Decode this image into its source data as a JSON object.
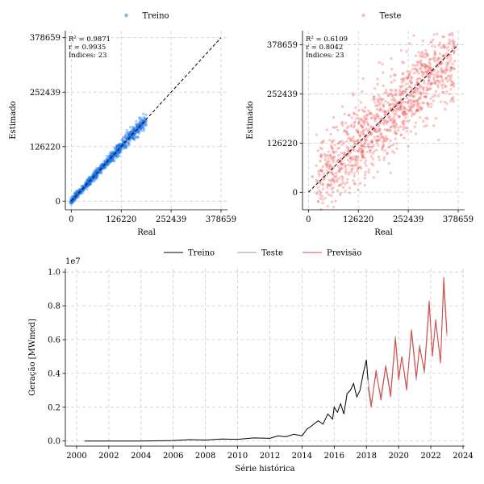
{
  "chart_data": [
    {
      "type": "scatter",
      "legend": {
        "label": "Treino",
        "color": "#1a73e8",
        "placement": "top-center"
      },
      "xlabel": "Real",
      "ylabel": "Estimado",
      "ticks": [
        0,
        126220,
        252439,
        378659
      ],
      "xlim": [
        -15000,
        395000
      ],
      "ylim": [
        -20000,
        395000
      ],
      "identity_line": true,
      "grid": true,
      "annotations": [
        "R² = 0.9871",
        "r = 0.9935",
        "Índices: 23"
      ],
      "point_color": "#1a73e8",
      "points_hint": "dense band along identity from 0 to ~190000 with small spread",
      "sample_points": [
        [
          1000,
          500
        ],
        [
          5000,
          8000
        ],
        [
          12000,
          10000
        ],
        [
          20000,
          24000
        ],
        [
          30000,
          26000
        ],
        [
          40000,
          44000
        ],
        [
          50000,
          47000
        ],
        [
          60000,
          66000
        ],
        [
          70000,
          68000
        ],
        [
          80000,
          82000
        ],
        [
          90000,
          86000
        ],
        [
          100000,
          104000
        ],
        [
          110000,
          108000
        ],
        [
          120000,
          125000
        ],
        [
          130000,
          128000
        ],
        [
          140000,
          144000
        ],
        [
          150000,
          148000
        ],
        [
          160000,
          163000
        ],
        [
          170000,
          168000
        ],
        [
          180000,
          176000
        ],
        [
          185000,
          182000
        ]
      ]
    },
    {
      "type": "scatter",
      "legend": {
        "label": "Teste",
        "color": "#f08080",
        "placement": "top-center"
      },
      "xlabel": "Real",
      "ylabel": "Estimado",
      "ticks": [
        0,
        126220,
        252439,
        378659
      ],
      "xlim": [
        -15000,
        395000
      ],
      "ylim": [
        -45000,
        415000
      ],
      "identity_line": true,
      "grid": true,
      "annotations": [
        "R² = 0.6109",
        "r = 0.8042",
        "Índices: 23"
      ],
      "point_color": "#f06060",
      "points_hint": "wide cloud around identity from 0 to ~380000",
      "sample_points": [
        [
          10000,
          40000
        ],
        [
          30000,
          80000
        ],
        [
          50000,
          20000
        ],
        [
          60000,
          130000
        ],
        [
          80000,
          60000
        ],
        [
          100000,
          150000
        ],
        [
          120000,
          90000
        ],
        [
          140000,
          180000
        ],
        [
          160000,
          130000
        ],
        [
          180000,
          210000
        ],
        [
          200000,
          160000
        ],
        [
          220000,
          250000
        ],
        [
          240000,
          200000
        ],
        [
          260000,
          280000
        ],
        [
          280000,
          240000
        ],
        [
          300000,
          300000
        ],
        [
          320000,
          280000
        ],
        [
          340000,
          340000
        ],
        [
          360000,
          320000
        ]
      ]
    },
    {
      "type": "line",
      "xlabel": "Série histórica",
      "ylabel": "Geração [MWmed]",
      "y_scale_label": "1e7",
      "xlim": [
        1999.3,
        2024.1
      ],
      "ylim": [
        -0.03,
        1.02
      ],
      "x_ticks": [
        2000,
        2002,
        2004,
        2006,
        2008,
        2010,
        2012,
        2014,
        2016,
        2018,
        2020,
        2022,
        2024
      ],
      "y_ticks": [
        "0.0",
        "0.2",
        "0.4",
        "0.6",
        "0.8",
        "1.0"
      ],
      "y_tick_values": [
        0.0,
        0.2,
        0.4,
        0.6,
        0.8,
        1.0
      ],
      "grid": true,
      "legend": {
        "placement": "top-center",
        "entries": [
          {
            "label": "Treino",
            "color": "#000000"
          },
          {
            "label": "Teste",
            "color": "#999999"
          },
          {
            "label": "Previsão",
            "color": "#e04848"
          }
        ]
      },
      "series": [
        {
          "name": "Treino",
          "color": "#000000",
          "x": [
            2000.5,
            2004,
            2006,
            2007,
            2008,
            2009,
            2010,
            2011,
            2012,
            2012.5,
            2013,
            2013.5,
            2014,
            2014.3,
            2014.6,
            2015,
            2015.3,
            2015.6,
            2015.9,
            2016,
            2016.2,
            2016.4,
            2016.6,
            2016.8,
            2017,
            2017.2,
            2017.4,
            2017.6,
            2017.8,
            2018,
            2018.1
          ],
          "y": [
            0.0,
            0.0,
            0.003,
            0.008,
            0.006,
            0.012,
            0.01,
            0.018,
            0.016,
            0.03,
            0.025,
            0.04,
            0.03,
            0.07,
            0.09,
            0.12,
            0.1,
            0.16,
            0.13,
            0.2,
            0.17,
            0.22,
            0.16,
            0.28,
            0.3,
            0.34,
            0.26,
            0.3,
            0.4,
            0.48,
            0.36
          ]
        },
        {
          "name": "Teste",
          "color": "#999999",
          "x": [
            2018.1,
            2018.3,
            2018.6,
            2018.9,
            2019.2,
            2019.5,
            2019.8,
            2020.0,
            2020.2,
            2020.5,
            2020.8,
            2021.1,
            2021.3,
            2021.6,
            2021.9,
            2022.1,
            2022.3,
            2022.6,
            2022.8,
            2023.0
          ],
          "y": [
            0.36,
            0.22,
            0.4,
            0.26,
            0.45,
            0.28,
            0.62,
            0.38,
            0.5,
            0.32,
            0.64,
            0.36,
            0.57,
            0.4,
            0.8,
            0.52,
            0.7,
            0.48,
            0.92,
            0.62
          ]
        },
        {
          "name": "Previsão",
          "color": "#e04848",
          "x": [
            2018.1,
            2018.3,
            2018.6,
            2018.9,
            2019.2,
            2019.5,
            2019.8,
            2020.0,
            2020.2,
            2020.5,
            2020.8,
            2021.1,
            2021.3,
            2021.6,
            2021.9,
            2022.1,
            2022.3,
            2022.6,
            2022.8,
            2023.0
          ],
          "y": [
            0.32,
            0.2,
            0.42,
            0.24,
            0.44,
            0.26,
            0.6,
            0.36,
            0.5,
            0.3,
            0.66,
            0.38,
            0.55,
            0.42,
            0.83,
            0.5,
            0.72,
            0.46,
            0.97,
            0.64
          ]
        }
      ]
    }
  ]
}
